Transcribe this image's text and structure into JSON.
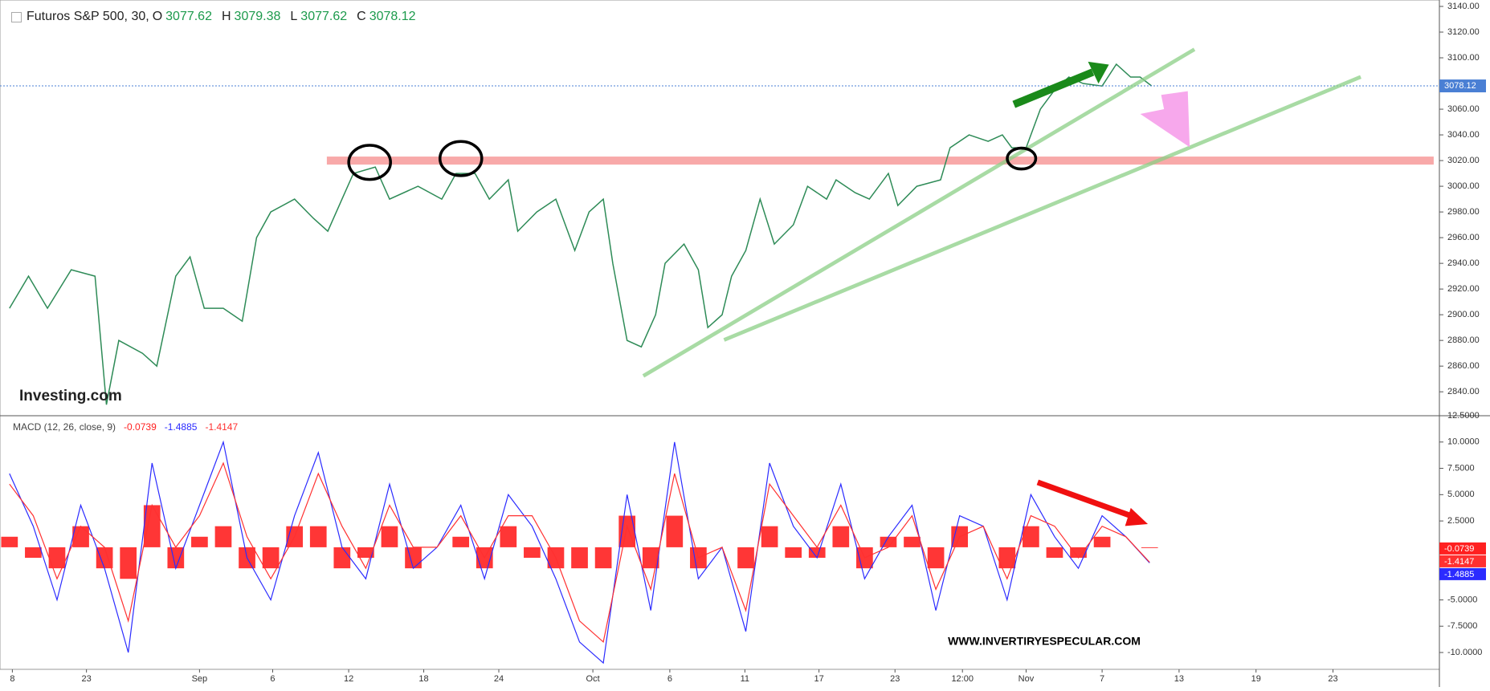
{
  "chart_data": [
    {
      "type": "line",
      "title": "Futuros S&P 500, 30,",
      "ohlc": [
        {
          "label": "O",
          "value": "3077.62"
        },
        {
          "label": "H",
          "value": "3079.38"
        },
        {
          "label": "L",
          "value": "3077.62"
        },
        {
          "label": "C",
          "value": "3078.12"
        }
      ],
      "watermark": "Investing.com",
      "x": [
        10,
        30,
        50,
        75,
        100,
        112,
        125,
        150,
        165,
        185,
        200,
        215,
        235,
        255,
        270,
        285,
        310,
        330,
        345,
        360,
        372,
        395,
        410,
        440,
        465,
        480,
        500,
        515,
        535,
        545,
        565,
        585,
        605,
        620,
        635,
        645,
        660,
        675,
        690,
        700,
        720,
        735,
        745,
        760,
        770,
        785,
        800,
        815,
        835,
        850,
        870,
        880,
        900,
        915,
        935,
        945,
        965,
        990,
        1000,
        1020,
        1040,
        1055,
        1065,
        1080,
        1095,
        1110,
        1125,
        1140,
        1160,
        1175,
        1190,
        1200,
        1212
      ],
      "values": [
        2905,
        2930,
        2905,
        2935,
        2930,
        2830,
        2880,
        2870,
        2860,
        2930,
        2945,
        2905,
        2905,
        2895,
        2960,
        2980,
        2990,
        2975,
        2965,
        2990,
        3010,
        3015,
        2990,
        3000,
        2990,
        3010,
        3010,
        2990,
        3005,
        2965,
        2980,
        2990,
        2950,
        2980,
        2990,
        2940,
        2880,
        2875,
        2900,
        2940,
        2955,
        2935,
        2890,
        2900,
        2930,
        2950,
        2990,
        2955,
        2970,
        3000,
        2990,
        3005,
        2995,
        2990,
        3010,
        2985,
        3000,
        3005,
        3030,
        3040,
        3035,
        3040,
        3030,
        3030,
        3060,
        3075,
        3085,
        3080,
        3078,
        3095,
        3085,
        3085,
        3078.12
      ],
      "color": "#2e8b57",
      "last_value": 3078.12,
      "last_color": "#4a7fd4",
      "support_level": 3020,
      "xlim": [
        0,
        1515
      ],
      "ylim": [
        2822,
        3145
      ],
      "yticks": [
        {
          "value": 2840,
          "label": "2840.00"
        },
        {
          "value": 2860,
          "label": "2860.00"
        },
        {
          "value": 2880,
          "label": "2880.00"
        },
        {
          "value": 2900,
          "label": "2900.00"
        },
        {
          "value": 2920,
          "label": "2920.00"
        },
        {
          "value": 2940,
          "label": "2940.00"
        },
        {
          "value": 2960,
          "label": "2960.00"
        },
        {
          "value": 2980,
          "label": "2980.00"
        },
        {
          "value": 3000,
          "label": "3000.00"
        },
        {
          "value": 3020,
          "label": "3020.00"
        },
        {
          "value": 3040,
          "label": "3040.00"
        },
        {
          "value": 3060,
          "label": "3060.00"
        },
        {
          "value": 3080,
          "label": "3080.00"
        },
        {
          "value": 3100,
          "label": "3100.00"
        },
        {
          "value": 3120,
          "label": "3120.00"
        },
        {
          "value": 3140,
          "label": "3140.00"
        }
      ]
    },
    {
      "type": "macd",
      "title": "MACD (12, 26, close, 9)",
      "credit": "WWW.INVERTIRYESPECULAR.COM",
      "x": [
        10,
        35,
        60,
        85,
        110,
        135,
        160,
        185,
        210,
        235,
        260,
        285,
        310,
        335,
        360,
        385,
        410,
        435,
        460,
        485,
        510,
        535,
        560,
        585,
        610,
        635,
        660,
        685,
        710,
        735,
        760,
        785,
        810,
        835,
        860,
        885,
        910,
        935,
        960,
        985,
        1010,
        1035,
        1060,
        1085,
        1110,
        1135,
        1160,
        1185,
        1210
      ],
      "series": [
        {
          "type": "bar",
          "color": "#ff2020",
          "values": [
            1,
            -1,
            -2,
            2,
            -2,
            -3,
            4,
            -2,
            1,
            2,
            -2,
            -2,
            2,
            2,
            -2,
            -1,
            2,
            -2,
            0,
            1,
            -2,
            2,
            -1,
            -2,
            -2,
            -2,
            3,
            -2,
            3,
            -2,
            0,
            -2,
            2,
            -1,
            -1,
            2,
            -2,
            1,
            1,
            -2,
            2,
            0,
            -2,
            2,
            -1,
            -1,
            1,
            0,
            -0.0739
          ]
        },
        {
          "type": "line",
          "color": "#2b2bff",
          "values": [
            7,
            2,
            -5,
            4,
            -2,
            -10,
            8,
            -2,
            4,
            10,
            -1,
            -5,
            3,
            9,
            0,
            -3,
            6,
            -2,
            0,
            4,
            -3,
            5,
            2,
            -3,
            -9,
            -11,
            5,
            -6,
            10,
            -3,
            0,
            -8,
            8,
            2,
            -1,
            6,
            -3,
            1,
            4,
            -6,
            3,
            2,
            -5,
            5,
            1,
            -2,
            3,
            1,
            -1.4885
          ]
        },
        {
          "type": "line",
          "color": "#ff3030",
          "values": [
            6,
            3,
            -3,
            2,
            0,
            -7,
            4,
            0,
            3,
            8,
            1,
            -3,
            1,
            7,
            2,
            -2,
            4,
            0,
            0,
            3,
            -1,
            3,
            3,
            -1,
            -7,
            -9,
            2,
            -4,
            7,
            -1,
            0,
            -6,
            6,
            3,
            0,
            4,
            -1,
            0,
            3,
            -4,
            1,
            2,
            -3,
            3,
            2,
            -1,
            2,
            1,
            -1.4147
          ]
        }
      ],
      "xlim": [
        0,
        1515
      ],
      "ylim": [
        -11.6,
        12.5
      ],
      "yticks": [
        {
          "value": 12.5,
          "label": "12.5000"
        },
        {
          "value": 10,
          "label": "10.0000"
        },
        {
          "value": 7.5,
          "label": "7.5000"
        },
        {
          "value": 5,
          "label": "5.0000"
        },
        {
          "value": 2.5,
          "label": "2.5000"
        },
        {
          "value": -5,
          "label": "-5.0000"
        },
        {
          "value": -7.5,
          "label": "-7.5000"
        },
        {
          "value": -10,
          "label": "-10.0000"
        }
      ],
      "xticks": [
        {
          "value": 13,
          "label": "8"
        },
        {
          "value": 91,
          "label": "23"
        },
        {
          "value": 210,
          "label": "Sep"
        },
        {
          "value": 287,
          "label": "6"
        },
        {
          "value": 367,
          "label": "12"
        },
        {
          "value": 446,
          "label": "18"
        },
        {
          "value": 525,
          "label": "24"
        },
        {
          "value": 624,
          "label": "Oct"
        },
        {
          "value": 705,
          "label": "6"
        },
        {
          "value": 784,
          "label": "11"
        },
        {
          "value": 862,
          "label": "17"
        },
        {
          "value": 942,
          "label": "23"
        },
        {
          "value": 1013,
          "label": "12:00"
        },
        {
          "value": 1080,
          "label": "Nov"
        },
        {
          "value": 1160,
          "label": "7"
        },
        {
          "value": 1241,
          "label": "13"
        },
        {
          "value": 1322,
          "label": "19"
        },
        {
          "value": 1403,
          "label": "23"
        }
      ]
    }
  ]
}
